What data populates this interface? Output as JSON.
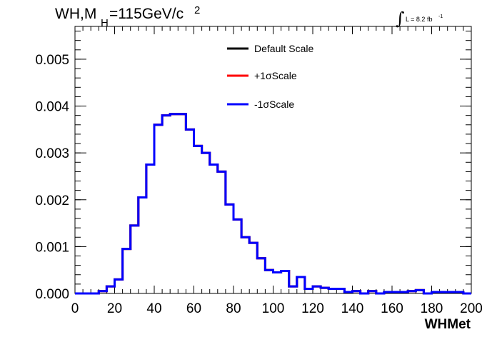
{
  "chart_data": {
    "type": "line",
    "title_parts": {
      "main": "WH,M",
      "sub": "H",
      "rest": "=115GeV/c",
      "sup": "2"
    },
    "lumi_parts": {
      "integral": "∫",
      "text": "L = 8.2 fb",
      "sup": "-1"
    },
    "xlabel": "WHMet",
    "ylabel": "",
    "xlim": [
      0,
      200
    ],
    "ylim": [
      0,
      0.0057
    ],
    "x_ticks": [
      "0",
      "20",
      "40",
      "60",
      "80",
      "100",
      "120",
      "140",
      "160",
      "180",
      "200"
    ],
    "y_ticks": [
      "0.000",
      "0.001",
      "0.002",
      "0.003",
      "0.004",
      "0.005"
    ],
    "legend": [
      {
        "name": "Default Scale",
        "color": "#000000"
      },
      {
        "name": "+1σScale",
        "color": "#ff0000"
      },
      {
        "name": "-1σScale",
        "color": "#0000ff"
      }
    ],
    "bin_edges": [
      0,
      4,
      8,
      12,
      16,
      20,
      24,
      28,
      32,
      36,
      40,
      44,
      48,
      52,
      56,
      60,
      64,
      68,
      72,
      76,
      80,
      84,
      88,
      92,
      96,
      100,
      104,
      108,
      112,
      116,
      120,
      124,
      128,
      132,
      136,
      140,
      144,
      148,
      152,
      156,
      160,
      164,
      168,
      172,
      176,
      180,
      184,
      188,
      192,
      196,
      200
    ],
    "series": [
      {
        "name": "Default Scale",
        "color": "#000000",
        "values": [
          0,
          0,
          0,
          5e-05,
          0.00015,
          0.0003,
          0.00095,
          0.00145,
          0.00205,
          0.00275,
          0.0036,
          0.0038,
          0.00383,
          0.00383,
          0.0035,
          0.00315,
          0.003,
          0.00275,
          0.0026,
          0.0019,
          0.00158,
          0.0012,
          0.00108,
          0.00075,
          0.0005,
          0.00045,
          0.00048,
          0.00015,
          0.00035,
          0.0001,
          0.00015,
          0.00012,
          0.0001,
          0.0001,
          3e-05,
          5e-05,
          0,
          5e-05,
          0,
          3e-05,
          3e-05,
          3e-05,
          5e-05,
          7e-05,
          0,
          3e-05,
          3e-05,
          3e-05,
          3e-05,
          0
        ]
      },
      {
        "name": "+1σScale",
        "color": "#ff0000",
        "values": [
          0,
          0,
          0,
          5e-05,
          0.00015,
          0.0003,
          0.00095,
          0.00145,
          0.00205,
          0.00275,
          0.0036,
          0.0038,
          0.00383,
          0.00383,
          0.0035,
          0.00315,
          0.003,
          0.00275,
          0.0026,
          0.0019,
          0.00158,
          0.0012,
          0.00108,
          0.00075,
          0.0005,
          0.00045,
          0.00048,
          0.00015,
          0.00035,
          0.0001,
          0.00015,
          0.00012,
          0.0001,
          0.0001,
          3e-05,
          5e-05,
          0,
          5e-05,
          0,
          3e-05,
          3e-05,
          3e-05,
          5e-05,
          7e-05,
          0,
          3e-05,
          3e-05,
          3e-05,
          3e-05,
          0
        ]
      },
      {
        "name": "-1σScale",
        "color": "#0000ff",
        "values": [
          0,
          0,
          0,
          5e-05,
          0.00015,
          0.0003,
          0.00095,
          0.00145,
          0.00205,
          0.00275,
          0.0036,
          0.0038,
          0.00383,
          0.00383,
          0.0035,
          0.00315,
          0.003,
          0.00275,
          0.0026,
          0.0019,
          0.00158,
          0.0012,
          0.00108,
          0.00075,
          0.0005,
          0.00045,
          0.00048,
          0.00015,
          0.00035,
          0.0001,
          0.00015,
          0.00012,
          0.0001,
          0.0001,
          3e-05,
          5e-05,
          0,
          5e-05,
          0,
          3e-05,
          3e-05,
          3e-05,
          5e-05,
          7e-05,
          0,
          3e-05,
          3e-05,
          3e-05,
          3e-05,
          0
        ]
      }
    ],
    "grid": false,
    "legend_position": "top-center"
  }
}
